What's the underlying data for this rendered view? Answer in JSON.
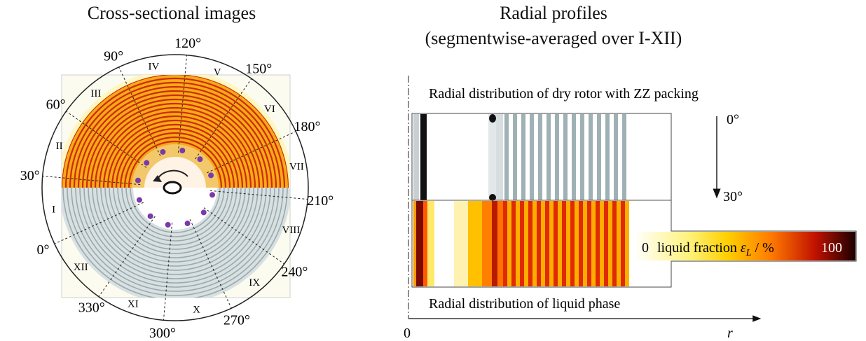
{
  "left_panel": {
    "title": "Cross-sectional images",
    "angles": [
      "0°",
      "30°",
      "60°",
      "90°",
      "120°",
      "150°",
      "180°",
      "210°",
      "240°",
      "270°",
      "300°",
      "330°"
    ],
    "segments": [
      "I",
      "II",
      "III",
      "IV",
      "V",
      "VI",
      "VII",
      "VIII",
      "IX",
      "X",
      "XI",
      "XII"
    ]
  },
  "right_panel": {
    "title_line1": "Radial profiles",
    "title_line2": "(segmentwise-averaged over I-XII)",
    "dry_label": "Radial distribution of dry rotor with ZZ packing",
    "liquid_label": "Radial distribution of liquid phase",
    "arrow_start": "0°",
    "arrow_end": "30°",
    "origin_label": "0",
    "axis_label": "r",
    "colorbar": {
      "min_label": "0",
      "text": "liquid fraction ",
      "symbol": "ε",
      "subscript": "L",
      "unit": " / %",
      "max_label": "100"
    }
  },
  "colors": {
    "liquid_low": "#ffffff",
    "liquid_mid1": "#ffe800",
    "liquid_mid2": "#ff8c00",
    "liquid_mid3": "#cc1a00",
    "liquid_high": "#1a0000",
    "dry_stripe": "#9fb1b4",
    "marker": "#7a3aa8"
  }
}
